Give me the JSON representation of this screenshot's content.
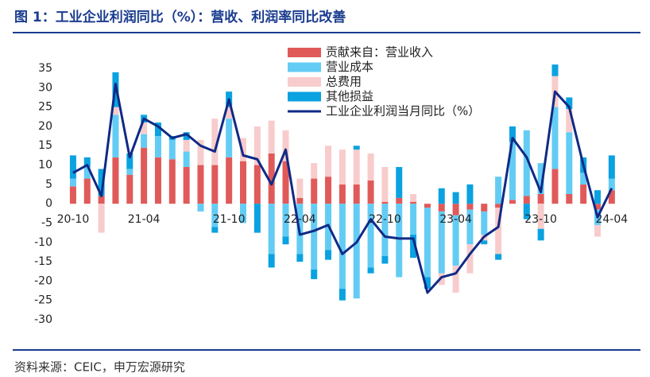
{
  "chart_data": {
    "type": "stacked_bar_line",
    "title": "图 1：工业企业利润同比（%）：营收、利润率同比改善",
    "source": "资料来源：CEIC，申万宏源研究",
    "categories": [
      "20-10",
      null,
      null,
      null,
      null,
      "21-04",
      null,
      null,
      null,
      null,
      null,
      "21-10",
      null,
      null,
      null,
      null,
      "22-04",
      null,
      null,
      null,
      null,
      null,
      "22-10",
      null,
      null,
      null,
      null,
      "23-04",
      null,
      null,
      null,
      null,
      null,
      "23-10",
      null,
      null,
      null,
      null,
      "24-04"
    ],
    "series": [
      {
        "name": "贡献来自：营业收入",
        "color": "#e05a5a",
        "values": [
          4.5,
          6.5,
          2,
          12,
          7.5,
          14.5,
          12,
          11.5,
          9.5,
          10,
          10,
          12,
          11,
          10,
          13,
          11,
          1.5,
          6.5,
          7,
          5,
          5,
          6,
          0.5,
          1.5,
          0.5,
          -1,
          -2,
          -3,
          -1.5,
          -2,
          -1,
          1,
          2,
          2.5,
          9,
          2.5,
          5,
          -1.5,
          3.5
        ]
      },
      {
        "name": "营业成本",
        "color": "#63ccf4",
        "values": [
          2,
          3,
          0,
          11,
          1.5,
          3.5,
          5.5,
          5,
          4,
          -2,
          -6,
          10,
          -5,
          0,
          -13,
          -8.5,
          -13,
          -17,
          -12,
          -22,
          -24.5,
          -16.5,
          -13.5,
          -19,
          -8,
          -18,
          -16,
          -13,
          -9,
          -6,
          7,
          15,
          17,
          8,
          16,
          16,
          3,
          -4,
          3
        ]
      },
      {
        "name": "总费用",
        "color": "#f8cccc",
        "values": [
          0,
          0,
          -7.5,
          2,
          0,
          3,
          0,
          0,
          3,
          6.5,
          12,
          3,
          6,
          10,
          8.5,
          8,
          5,
          4,
          8,
          9,
          9,
          7,
          9,
          0,
          2,
          0,
          -3,
          -7,
          -7.5,
          -1.5,
          -12,
          0,
          0,
          -6.5,
          8,
          6,
          0,
          -3,
          0
        ]
      },
      {
        "name": "其他损益",
        "color": "#0aa2e0",
        "values": [
          6,
          2.5,
          7,
          9,
          4,
          2,
          3.5,
          1,
          2,
          0,
          -1.5,
          4,
          0,
          -7.5,
          -3.5,
          -2,
          -2,
          -2.5,
          -2.5,
          -3,
          1,
          -1.5,
          -2,
          8,
          -6,
          -3,
          4,
          3,
          5,
          -1,
          -1.5,
          4,
          -4,
          -3,
          3,
          3,
          4,
          3.5,
          6
        ]
      }
    ],
    "line": {
      "name": "工业企业利润当月同比（%）",
      "color": "#0f2a86",
      "values": [
        8,
        10,
        2,
        31,
        12,
        22,
        20,
        17,
        18,
        15,
        13.5,
        27,
        12.5,
        11.5,
        5,
        14,
        -8,
        -7,
        -5.5,
        -13,
        -10,
        -4,
        -8.5,
        -9,
        -9,
        -23,
        -19,
        -18,
        -13,
        -8.5,
        -6,
        17,
        12,
        3,
        29,
        25,
        10,
        -3.5,
        4
      ]
    },
    "ylim": [
      -30,
      35
    ],
    "yticks": [
      -30,
      -25,
      -20,
      -15,
      -10,
      -5,
      0,
      5,
      10,
      15,
      20,
      25,
      30,
      35
    ]
  }
}
